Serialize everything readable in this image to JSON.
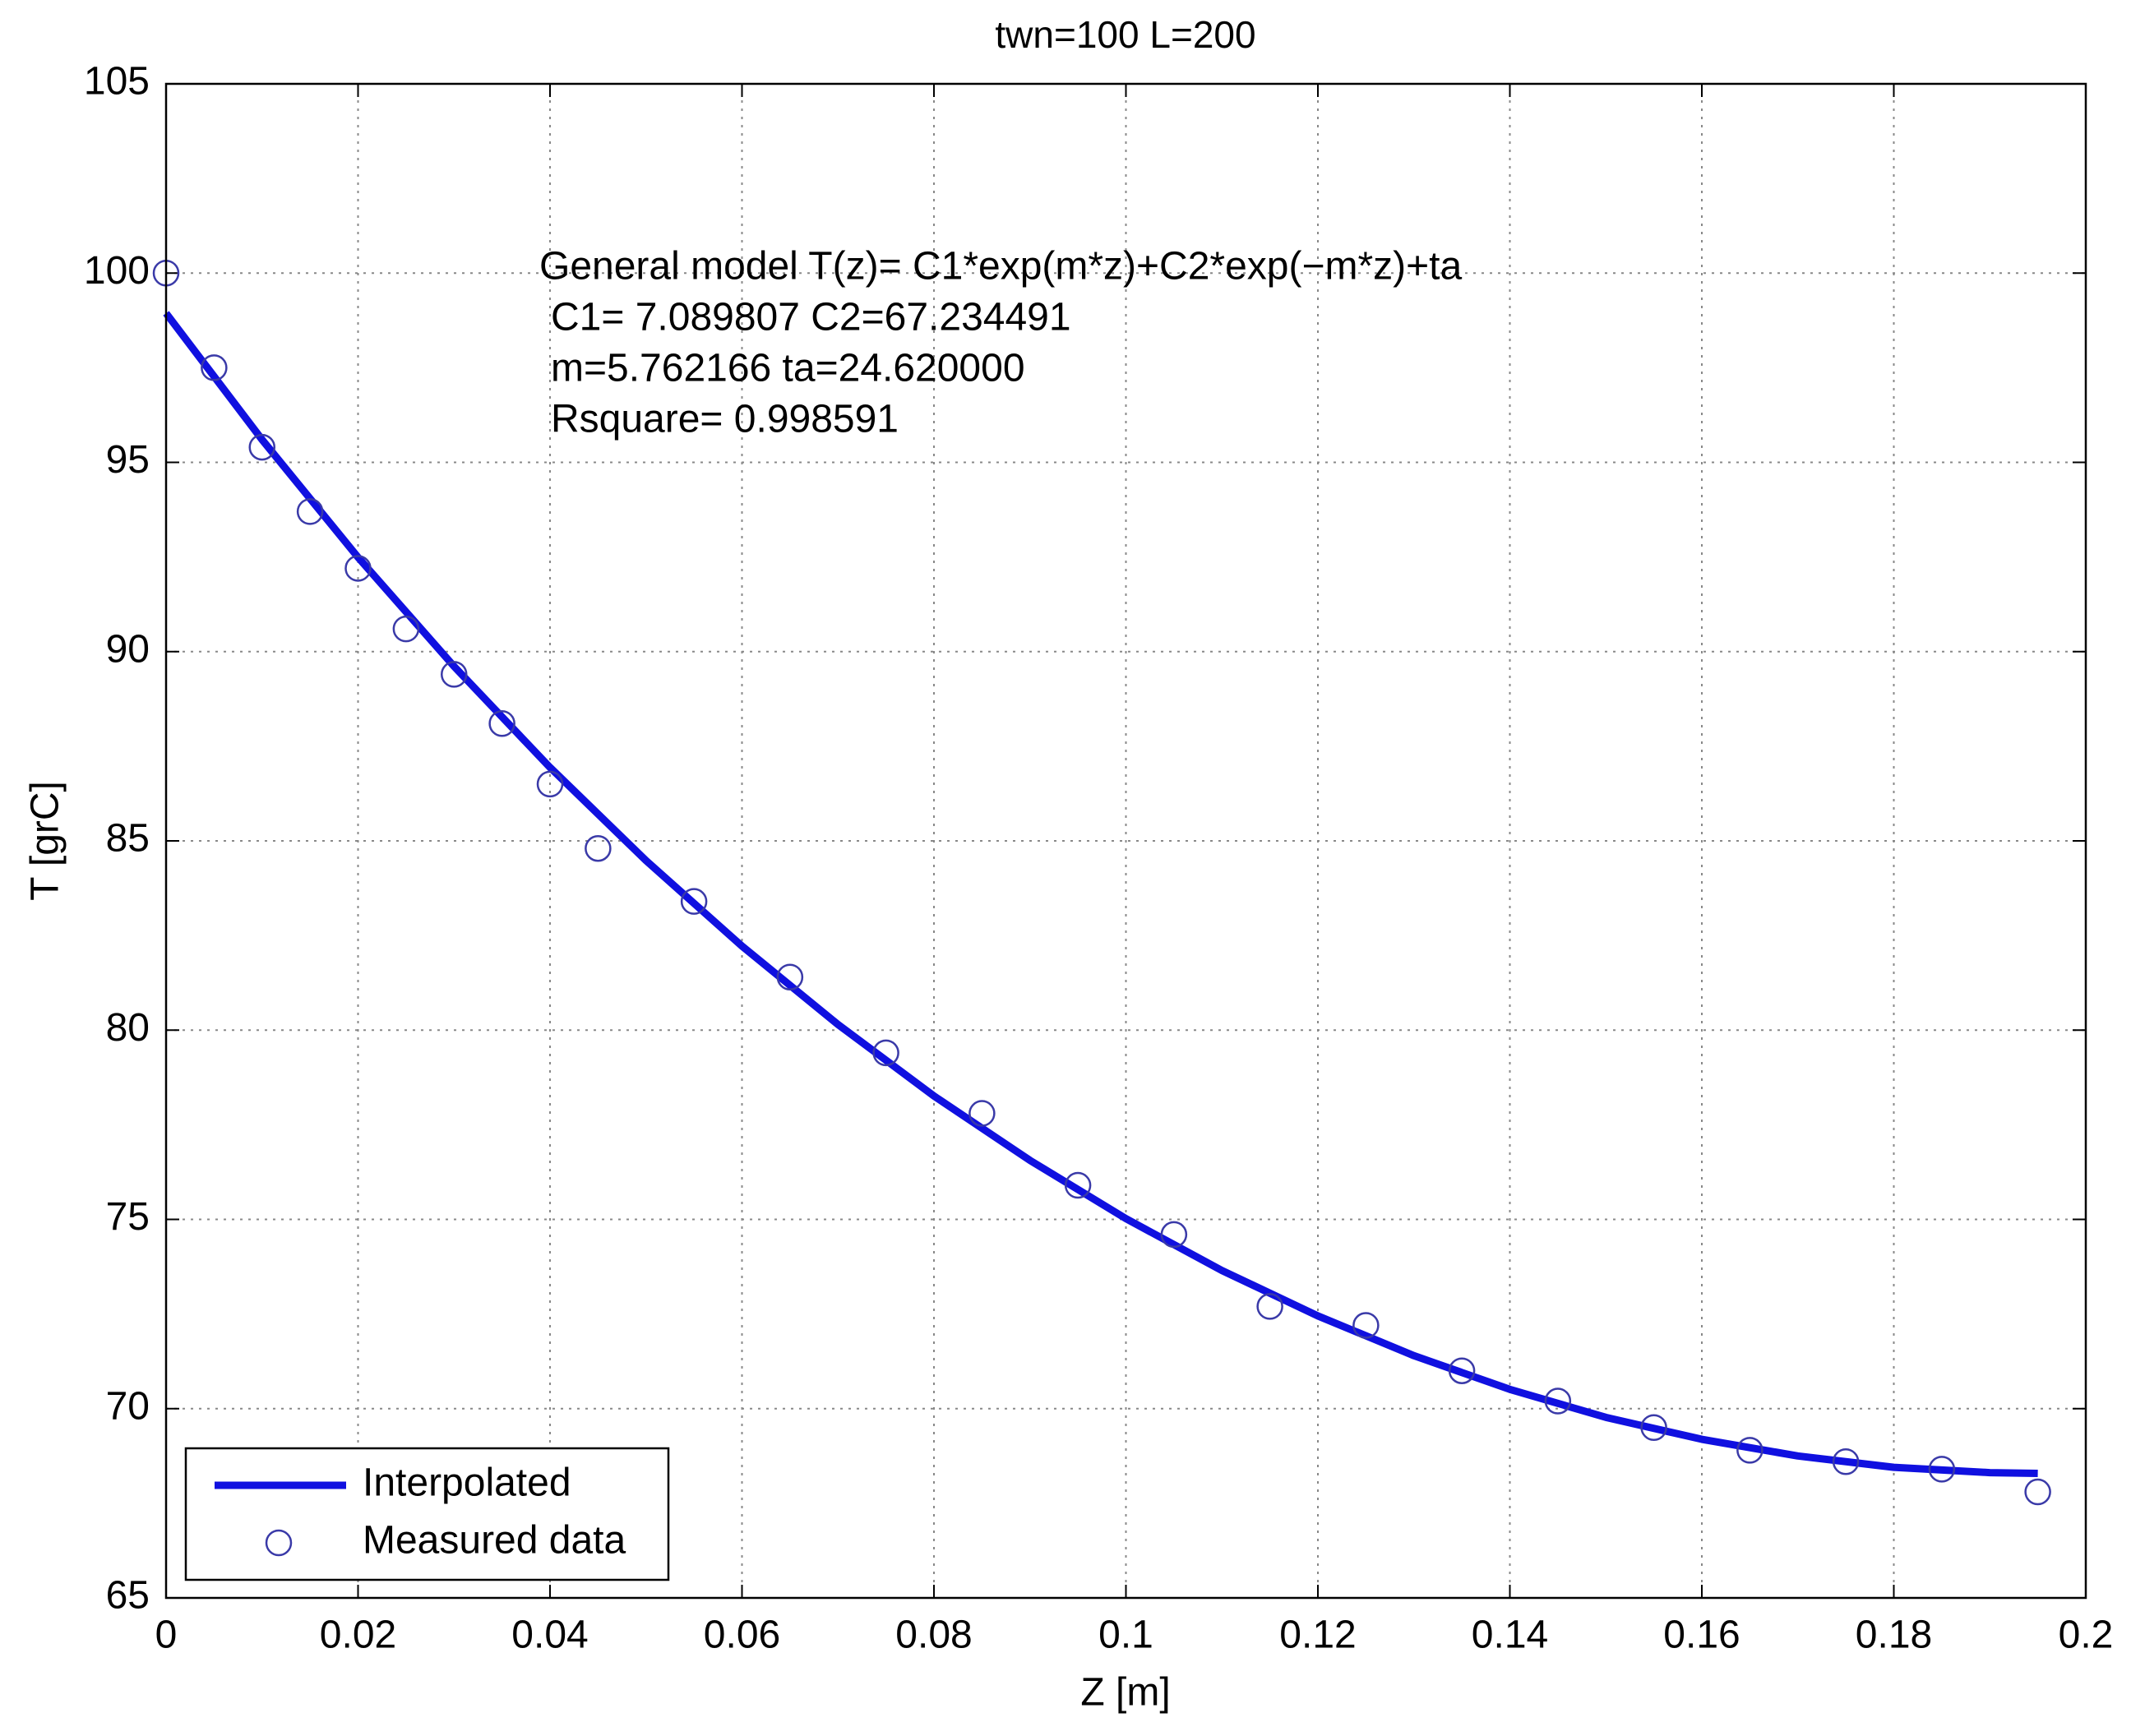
{
  "chart_data": {
    "type": "line",
    "title": "twn=100 L=200",
    "x_label": "Z [m]",
    "y_label": "T [grC]",
    "annotation": [
      "General model T(z)= C1*exp(m*z)+C2*exp(−m*z)+ta",
      "C1= 7.089807  C2=67.234491",
      "m=5.762166  ta=24.620000",
      "Rsquare= 0.998591"
    ],
    "xlim": [
      0,
      0.2
    ],
    "ylim": [
      65,
      105
    ],
    "xticks": [
      0,
      0.02,
      0.04,
      0.06,
      0.08,
      0.1,
      0.12,
      0.14,
      0.16,
      0.18,
      0.2
    ],
    "yticks": [
      65,
      70,
      75,
      80,
      85,
      90,
      95,
      100,
      105
    ],
    "grid": true,
    "legend": "lower left",
    "series": [
      {
        "name": "Interpolated",
        "color": "#1010e0",
        "style": "line",
        "x": [
          0,
          0.01,
          0.02,
          0.03,
          0.04,
          0.05,
          0.06,
          0.07,
          0.08,
          0.09,
          0.1,
          0.11,
          0.12,
          0.13,
          0.14,
          0.15,
          0.16,
          0.17,
          0.18,
          0.19,
          0.195
        ],
        "values": [
          98.94,
          95.6,
          92.49,
          89.61,
          86.94,
          84.48,
          82.22,
          80.15,
          78.26,
          76.56,
          75.02,
          73.65,
          72.45,
          71.4,
          70.51,
          69.77,
          69.19,
          68.75,
          68.45,
          68.31,
          68.29
        ]
      },
      {
        "name": "Measured data",
        "color": "#3a3aa8",
        "style": "circle",
        "x": [
          0,
          0.005,
          0.01,
          0.015,
          0.02,
          0.025,
          0.03,
          0.035,
          0.04,
          0.045,
          0.055,
          0.065,
          0.075,
          0.085,
          0.095,
          0.105,
          0.115,
          0.125,
          0.135,
          0.145,
          0.155,
          0.165,
          0.175,
          0.185,
          0.195
        ],
        "values": [
          100,
          97.5,
          95.4,
          93.7,
          92.2,
          90.6,
          89.4,
          88.1,
          86.5,
          84.8,
          83.4,
          81.4,
          79.4,
          77.8,
          75.9,
          74.6,
          72.7,
          72.2,
          71.0,
          70.2,
          69.5,
          68.9,
          68.6,
          68.4,
          67.8
        ]
      }
    ]
  }
}
